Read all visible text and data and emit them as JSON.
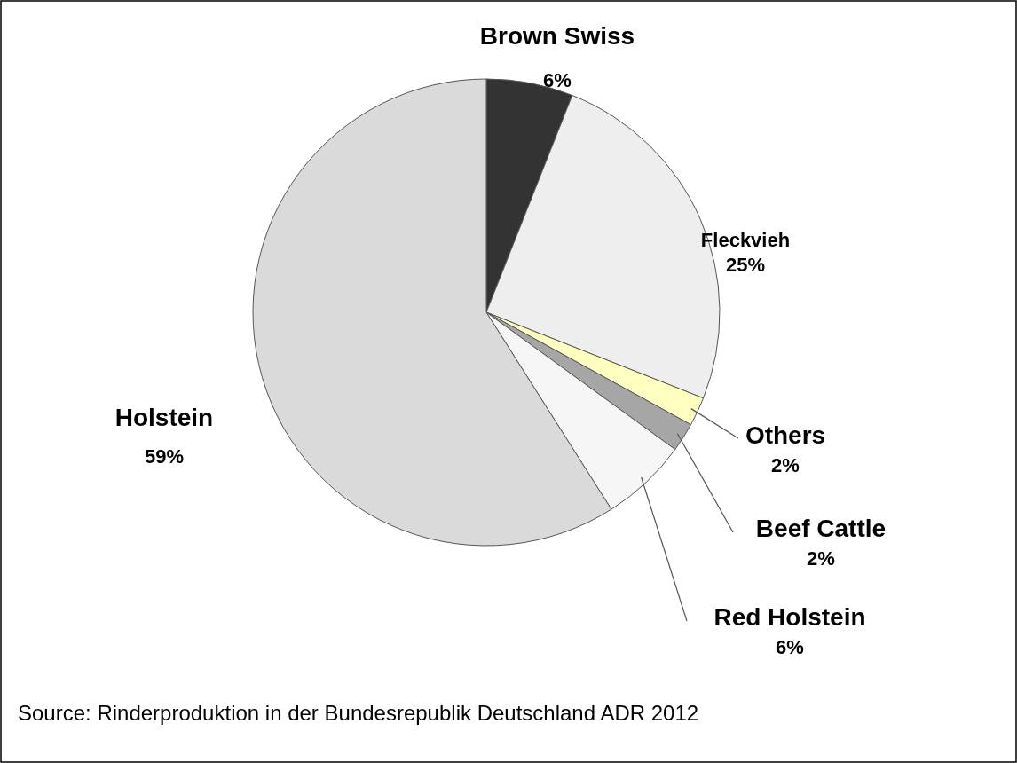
{
  "chart_data": {
    "type": "pie",
    "categories": [
      "Brown Swiss",
      "Fleckvieh",
      "Others",
      "Beef Cattle",
      "Red Holstein",
      "Holstein"
    ],
    "values": [
      6,
      25,
      2,
      2,
      6,
      59
    ],
    "colors": [
      "#333333",
      "#eeeeee",
      "#ffffc0",
      "#a6a6a6",
      "#f6f6f6",
      "#dadada"
    ],
    "value_labels": [
      "6%",
      "25%",
      "2%",
      "2%",
      "6%",
      "59%"
    ],
    "annotations": [
      "Source: Rinderproduktion in der Bundesrepublik Deutschland ADR 2012"
    ]
  }
}
